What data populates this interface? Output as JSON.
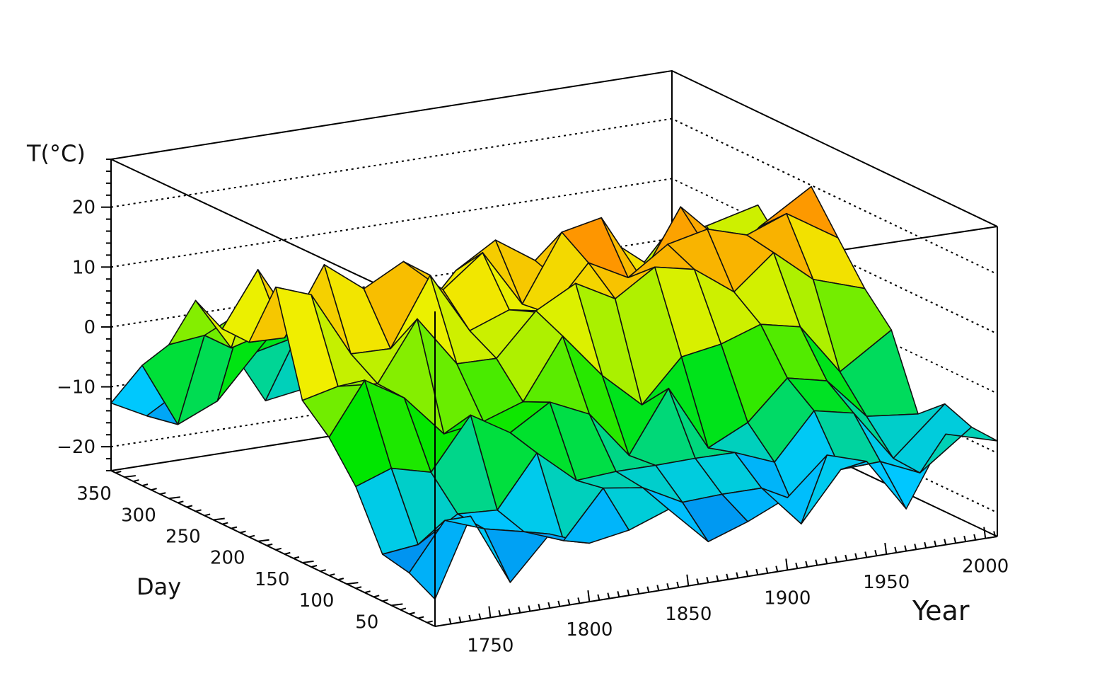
{
  "chart_data": {
    "type": "surface3d",
    "z_axis": {
      "title": "T(°C)",
      "ticks": [
        -20,
        -10,
        0,
        10,
        20
      ],
      "range": [
        -24,
        28
      ]
    },
    "x_axis": {
      "title": "Year",
      "ticks": [
        1750,
        1800,
        1850,
        1900,
        1950,
        2000
      ],
      "range": [
        1722,
        2006
      ]
    },
    "y_axis": {
      "title": "Day",
      "ticks": [
        50,
        100,
        150,
        200,
        250,
        300,
        350
      ],
      "range": [
        1,
        365
      ]
    },
    "grid": "dotted on back walls",
    "colormap": "rainbow (blue = low, red = high)",
    "surface_summary": {
      "description_values": {
        "seasonal_min_temp_approx": -24,
        "seasonal_max_temp_approx": 25,
        "mid_year_peak_day_approx": 200,
        "winter_trough_day_approx": 20
      }
    },
    "year_nodes": [
      1722,
      1740,
      1760,
      1780,
      1800,
      1820,
      1840,
      1860,
      1880,
      1900,
      1920,
      1940,
      1960,
      1980,
      2006
    ],
    "day_nodes": [
      1,
      30,
      60,
      90,
      120,
      150,
      180,
      210,
      240,
      270,
      300,
      330,
      365
    ]
  }
}
